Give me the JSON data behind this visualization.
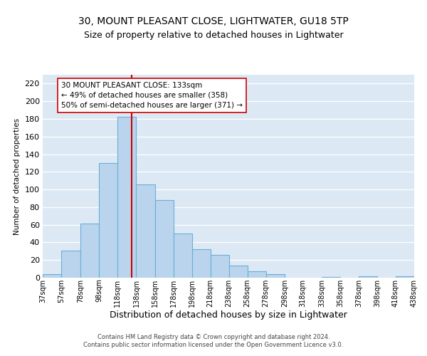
{
  "title": "30, MOUNT PLEASANT CLOSE, LIGHTWATER, GU18 5TP",
  "subtitle": "Size of property relative to detached houses in Lightwater",
  "xlabel": "Distribution of detached houses by size in Lightwater",
  "ylabel": "Number of detached properties",
  "footnote1": "Contains HM Land Registry data © Crown copyright and database right 2024.",
  "footnote2": "Contains public sector information licensed under the Open Government Licence v3.0.",
  "bar_left_edges": [
    37,
    57,
    78,
    98,
    118,
    138,
    158,
    178,
    198,
    218,
    238,
    258,
    278,
    298,
    318,
    338,
    358,
    378,
    398,
    418
  ],
  "bar_widths": [
    20,
    21,
    20,
    20,
    20,
    20,
    20,
    20,
    20,
    20,
    20,
    20,
    20,
    20,
    20,
    20,
    20,
    20,
    20,
    20
  ],
  "bar_heights": [
    4,
    31,
    61,
    130,
    182,
    106,
    88,
    50,
    32,
    26,
    14,
    7,
    4,
    0,
    0,
    1,
    0,
    2,
    0,
    2
  ],
  "bar_color": "#bad4ed",
  "bar_edge_color": "#6baed6",
  "vline_x": 133,
  "vline_color": "#cc0000",
  "annotation_line1": "30 MOUNT PLEASANT CLOSE: 133sqm",
  "annotation_line2": "← 49% of detached houses are smaller (358)",
  "annotation_line3": "50% of semi-detached houses are larger (371) →",
  "annotation_box_color": "#ffffff",
  "annotation_box_edgecolor": "#cc0000",
  "xlim_left": 37,
  "xlim_right": 438,
  "ylim_top": 230,
  "yticks": [
    0,
    20,
    40,
    60,
    80,
    100,
    120,
    140,
    160,
    180,
    200,
    220
  ],
  "tick_labels": [
    "37sqm",
    "57sqm",
    "78sqm",
    "98sqm",
    "118sqm",
    "138sqm",
    "158sqm",
    "178sqm",
    "198sqm",
    "218sqm",
    "238sqm",
    "258sqm",
    "278sqm",
    "298sqm",
    "318sqm",
    "338sqm",
    "358sqm",
    "378sqm",
    "398sqm",
    "418sqm",
    "438sqm"
  ],
  "tick_positions": [
    37,
    57,
    78,
    98,
    118,
    138,
    158,
    178,
    198,
    218,
    238,
    258,
    278,
    298,
    318,
    338,
    358,
    378,
    398,
    418,
    438
  ],
  "background_color": "#dce9f5",
  "grid_color": "#ffffff",
  "title_fontsize": 10,
  "subtitle_fontsize": 9,
  "xlabel_fontsize": 9,
  "ylabel_fontsize": 7.5,
  "tick_fontsize": 7,
  "annotation_fontsize": 7.5,
  "footnote_fontsize": 6
}
